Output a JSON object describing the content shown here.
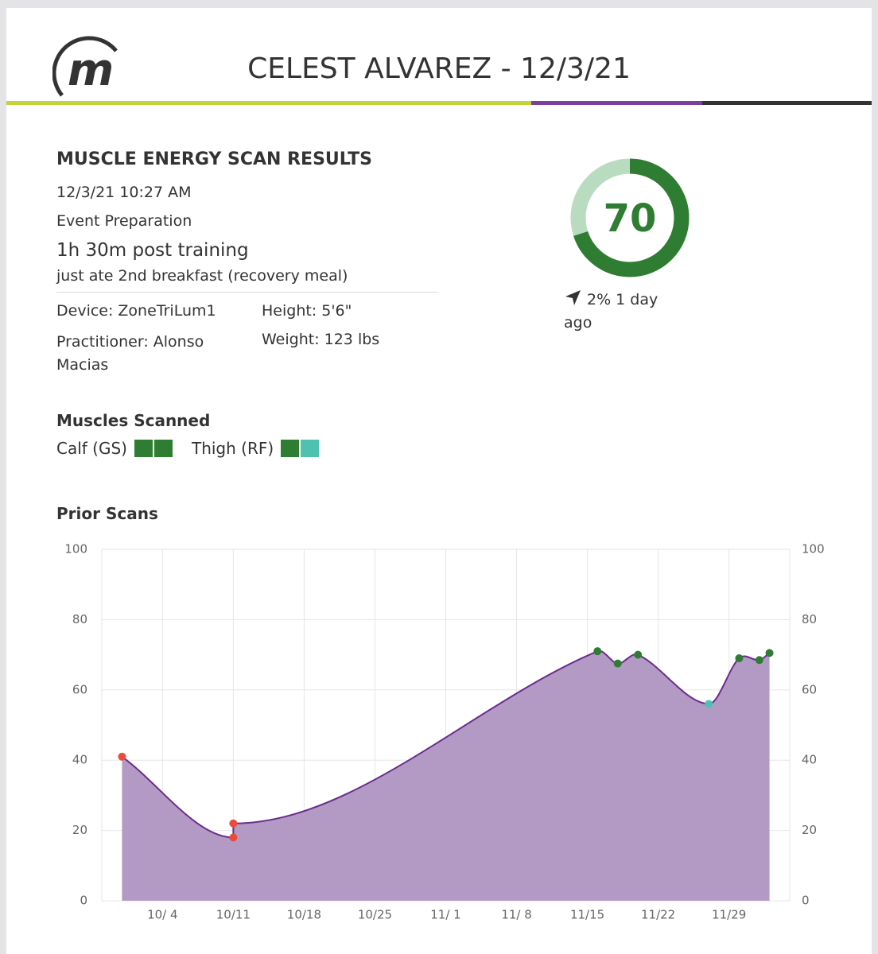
{
  "header": {
    "logo": "m",
    "title": "CELEST ALVAREZ - 12/3/21"
  },
  "scan": {
    "title": "MUSCLE ENERGY SCAN RESULTS",
    "datetime": "12/3/21 10:27 AM",
    "event": "Event Preparation",
    "timing": "1h 30m post training",
    "note": "just ate 2nd breakfast (recovery meal)",
    "device": "Device: ZoneTriLum1",
    "height": "Height: 5'6\"",
    "practitioner": "Practitioner: Alonso Macias",
    "weight": "Weight: 123 lbs"
  },
  "score": {
    "value": 70,
    "color": "#2e7d32",
    "track_color": "#b9dbc0",
    "change": "2% 1 day ago"
  },
  "muscles": {
    "title": "Muscles Scanned",
    "items": [
      {
        "label": "Calf (GS)",
        "colors": [
          "#2e7d32",
          "#2e7d32"
        ]
      },
      {
        "label": "Thigh (RF)",
        "colors": [
          "#2e7d32",
          "#4fc1b0"
        ]
      }
    ]
  },
  "chart_data": {
    "type": "area",
    "title": "Prior Scans",
    "x": [
      "9/30",
      "10/11",
      "10/11",
      "11/16",
      "11/18",
      "11/20",
      "11/27",
      "11/30",
      "12/2",
      "12/3"
    ],
    "series": [
      {
        "color": "#6a2c8e",
        "fill": "#b39ac4",
        "values": [
          41,
          18,
          22,
          71,
          67.5,
          70,
          56,
          69,
          68.5,
          70.5
        ],
        "point_colors": [
          "#e74c3c",
          "#e74c3c",
          "#e74c3c",
          "#2e7d32",
          "#2e7d32",
          "#2e7d32",
          "#4fc1b0",
          "#2e7d32",
          "#2e7d32",
          "#2e7d32"
        ]
      }
    ],
    "xlim": [
      "9/28",
      "12/5"
    ],
    "xticks": [
      {
        "value": "10/4",
        "label": "10/ 4"
      },
      "10/11",
      "10/18",
      "10/25",
      {
        "value": "11/1",
        "label": "11/ 1"
      },
      {
        "value": "11/8",
        "label": "11/ 8"
      },
      "11/15",
      "11/22",
      "11/29"
    ],
    "ylim": [
      0,
      100
    ],
    "yticks": [
      0,
      20,
      40,
      60,
      80,
      100
    ],
    "y2lim": [
      0,
      100
    ],
    "y2ticks": [
      0,
      20,
      40,
      60,
      80,
      100
    ],
    "grid": true
  }
}
